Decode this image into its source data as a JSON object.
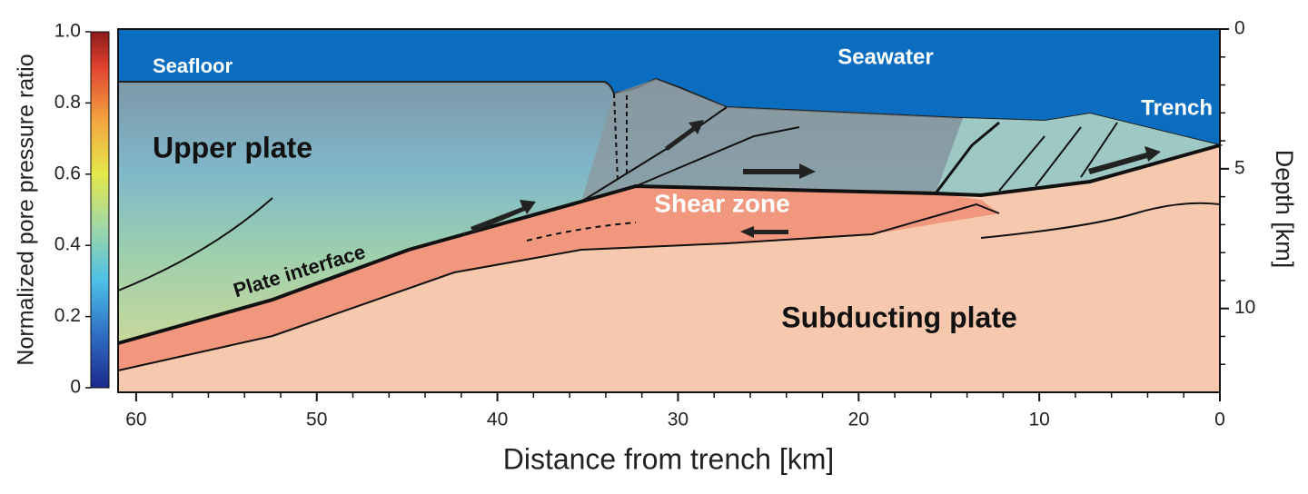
{
  "chart_data": {
    "type": "cross-section",
    "xlabel": "Distance from trench [km]",
    "ylabel": "Depth [km]",
    "xlim": [
      61,
      0
    ],
    "xticks": [
      60,
      50,
      40,
      30,
      20,
      10,
      0
    ],
    "xticks_minor": [
      58,
      56,
      54,
      52,
      48,
      46,
      44,
      42,
      38,
      36,
      34,
      32,
      28,
      26,
      24,
      22,
      18,
      16,
      14,
      12,
      8,
      6,
      4,
      2
    ],
    "ylim": [
      0,
      13
    ],
    "yticks": [
      0,
      5,
      10
    ],
    "yticks_minor": [
      1,
      2,
      3,
      4,
      6,
      7,
      8,
      9,
      11,
      12
    ],
    "colorbar": {
      "label": "Normalized pore pressure ratio",
      "lim": [
        0,
        1
      ],
      "ticks": [
        0,
        0.2,
        0.4,
        0.6,
        0.8,
        {
          "value": 1,
          "label": "1.0"
        }
      ]
    },
    "annotations": [
      "Seafloor",
      "Seawater",
      "Trench",
      "Upper plate",
      "Shear zone",
      "Plate interface",
      "Subducting plate"
    ]
  }
}
